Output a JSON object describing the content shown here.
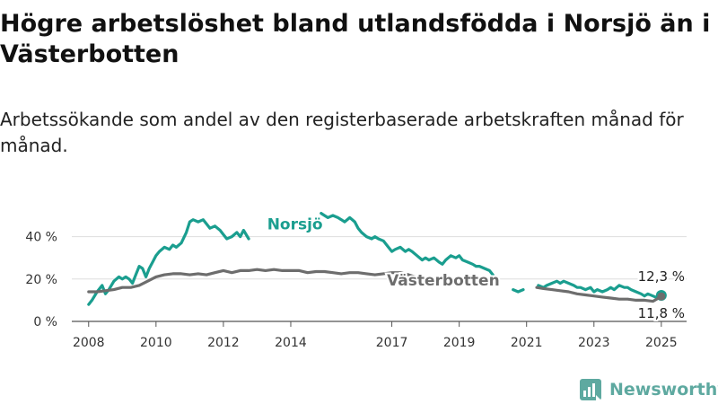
{
  "title": "Högre arbetslöshet bland utlandsfödda i Norsjö än i Västerbotten",
  "subtitle": "Arbetssökande som andel av den registerbaserade arbetskraften månad för månad.",
  "brand": "Newsworthy",
  "colors": {
    "norsjo": "#1a9e8f",
    "vasterbotten": "#6d6d6d",
    "grid": "#dddddd",
    "brand": "#5ea9a0"
  },
  "chart_data": {
    "type": "line",
    "x_unit": "year",
    "x_ticks": [
      2008,
      2010,
      2012,
      2014,
      2017,
      2019,
      2021,
      2023,
      2025
    ],
    "x_tick_labels": [
      "2008",
      "2010",
      "2012",
      "2014",
      "2017",
      "2019",
      "2021",
      "2023",
      "2025"
    ],
    "y_ticks": [
      0,
      20,
      40
    ],
    "y_tick_labels": [
      "0 %",
      "20 %",
      "40 %"
    ],
    "xlim": [
      2007.5,
      2025.75
    ],
    "ylim": [
      0,
      50
    ],
    "grid": true,
    "series": [
      {
        "name": "Norsjö",
        "color": "#1a9e8f",
        "end_label": "12,3 %",
        "segments": [
          [
            [
              2008.0,
              8
            ],
            [
              2008.1,
              10
            ],
            [
              2008.25,
              14
            ],
            [
              2008.4,
              17
            ],
            [
              2008.5,
              13
            ],
            [
              2008.6,
              15
            ],
            [
              2008.75,
              19
            ],
            [
              2008.9,
              21
            ],
            [
              2009.0,
              20
            ],
            [
              2009.1,
              21
            ],
            [
              2009.2,
              20
            ],
            [
              2009.3,
              18
            ],
            [
              2009.4,
              22
            ],
            [
              2009.5,
              26
            ],
            [
              2009.6,
              25
            ],
            [
              2009.7,
              21
            ],
            [
              2009.8,
              25
            ],
            [
              2009.9,
              28
            ],
            [
              2010.0,
              31
            ],
            [
              2010.1,
              33
            ],
            [
              2010.25,
              35
            ],
            [
              2010.4,
              34
            ],
            [
              2010.5,
              36
            ],
            [
              2010.6,
              35
            ],
            [
              2010.75,
              37
            ],
            [
              2010.9,
              42
            ],
            [
              2011.0,
              47
            ],
            [
              2011.1,
              48
            ],
            [
              2011.25,
              47
            ],
            [
              2011.4,
              48
            ],
            [
              2011.5,
              46
            ],
            [
              2011.6,
              44
            ],
            [
              2011.75,
              45
            ],
            [
              2011.9,
              43
            ],
            [
              2012.0,
              41
            ],
            [
              2012.1,
              39
            ],
            [
              2012.25,
              40
            ],
            [
              2012.4,
              42
            ],
            [
              2012.5,
              40
            ],
            [
              2012.6,
              43
            ],
            [
              2012.75,
              39
            ]
          ],
          [
            [
              2014.9,
              51
            ],
            [
              2015.0,
              50
            ],
            [
              2015.1,
              49
            ],
            [
              2015.25,
              50
            ],
            [
              2015.4,
              49
            ],
            [
              2015.5,
              48
            ],
            [
              2015.6,
              47
            ],
            [
              2015.75,
              49
            ],
            [
              2015.9,
              47
            ],
            [
              2016.0,
              44
            ],
            [
              2016.1,
              42
            ],
            [
              2016.25,
              40
            ],
            [
              2016.4,
              39
            ],
            [
              2016.5,
              40
            ],
            [
              2016.6,
              39
            ],
            [
              2016.75,
              38
            ],
            [
              2016.9,
              35
            ],
            [
              2017.0,
              33
            ],
            [
              2017.1,
              34
            ],
            [
              2017.25,
              35
            ],
            [
              2017.4,
              33
            ],
            [
              2017.5,
              34
            ],
            [
              2017.6,
              33
            ],
            [
              2017.75,
              31
            ],
            [
              2017.9,
              29
            ],
            [
              2018.0,
              30
            ],
            [
              2018.1,
              29
            ],
            [
              2018.25,
              30
            ],
            [
              2018.4,
              28
            ],
            [
              2018.5,
              27
            ],
            [
              2018.6,
              29
            ],
            [
              2018.75,
              31
            ],
            [
              2018.9,
              30
            ],
            [
              2019.0,
              31
            ],
            [
              2019.1,
              29
            ],
            [
              2019.25,
              28
            ],
            [
              2019.4,
              27
            ],
            [
              2019.5,
              26
            ],
            [
              2019.6,
              26
            ],
            [
              2019.75,
              25
            ],
            [
              2019.9,
              24
            ],
            [
              2020.0,
              22
            ]
          ],
          [
            [
              2020.6,
              15
            ],
            [
              2020.75,
              14
            ],
            [
              2020.9,
              15
            ]
          ],
          [
            [
              2021.35,
              17
            ],
            [
              2021.5,
              16
            ],
            [
              2021.6,
              17
            ],
            [
              2021.75,
              18
            ],
            [
              2021.9,
              19
            ],
            [
              2022.0,
              18
            ],
            [
              2022.1,
              19
            ],
            [
              2022.25,
              18
            ],
            [
              2022.4,
              17
            ],
            [
              2022.5,
              16
            ],
            [
              2022.6,
              16
            ],
            [
              2022.75,
              15
            ],
            [
              2022.9,
              16
            ],
            [
              2023.0,
              14
            ],
            [
              2023.1,
              15
            ],
            [
              2023.25,
              14
            ],
            [
              2023.4,
              15
            ],
            [
              2023.5,
              16
            ],
            [
              2023.6,
              15
            ],
            [
              2023.75,
              17
            ],
            [
              2023.9,
              16
            ],
            [
              2024.0,
              16
            ],
            [
              2024.1,
              15
            ],
            [
              2024.25,
              14
            ],
            [
              2024.4,
              13
            ],
            [
              2024.5,
              12
            ],
            [
              2024.6,
              13
            ],
            [
              2024.75,
              12
            ],
            [
              2024.9,
              11
            ],
            [
              2025.0,
              12.3
            ]
          ]
        ]
      },
      {
        "name": "Västerbotten",
        "color": "#6d6d6d",
        "end_label": "11,8 %",
        "segments": [
          [
            [
              2008.0,
              14
            ],
            [
              2008.25,
              14
            ],
            [
              2008.5,
              14.5
            ],
            [
              2008.75,
              15
            ],
            [
              2009.0,
              16
            ],
            [
              2009.25,
              16
            ],
            [
              2009.5,
              17
            ],
            [
              2009.75,
              19
            ],
            [
              2010.0,
              21
            ],
            [
              2010.25,
              22
            ],
            [
              2010.5,
              22.5
            ],
            [
              2010.75,
              22.5
            ],
            [
              2011.0,
              22
            ],
            [
              2011.25,
              22.5
            ],
            [
              2011.5,
              22
            ],
            [
              2011.75,
              23
            ],
            [
              2012.0,
              24
            ],
            [
              2012.25,
              23
            ],
            [
              2012.5,
              24
            ],
            [
              2012.75,
              24
            ],
            [
              2013.0,
              24.5
            ],
            [
              2013.25,
              24
            ],
            [
              2013.5,
              24.5
            ],
            [
              2013.75,
              24
            ],
            [
              2014.0,
              24
            ],
            [
              2014.25,
              24
            ],
            [
              2014.5,
              23
            ],
            [
              2014.75,
              23.5
            ],
            [
              2015.0,
              23.5
            ],
            [
              2015.25,
              23
            ],
            [
              2015.5,
              22.5
            ],
            [
              2015.75,
              23
            ],
            [
              2016.0,
              23
            ],
            [
              2016.25,
              22.5
            ],
            [
              2016.5,
              22
            ],
            [
              2016.75,
              22.5
            ],
            [
              2017.0,
              23
            ],
            [
              2017.25,
              23
            ],
            [
              2017.5,
              22
            ],
            [
              2017.7,
              21
            ]
          ],
          [
            [
              2021.3,
              16
            ],
            [
              2021.5,
              15.5
            ],
            [
              2021.75,
              15
            ],
            [
              2022.0,
              14.5
            ],
            [
              2022.25,
              14
            ],
            [
              2022.5,
              13
            ],
            [
              2022.75,
              12.5
            ],
            [
              2023.0,
              12
            ],
            [
              2023.25,
              11.5
            ],
            [
              2023.5,
              11
            ],
            [
              2023.75,
              10.5
            ],
            [
              2024.0,
              10.5
            ],
            [
              2024.25,
              10
            ],
            [
              2024.5,
              10
            ],
            [
              2024.75,
              9.5
            ],
            [
              2025.0,
              11.8
            ]
          ]
        ]
      }
    ]
  }
}
